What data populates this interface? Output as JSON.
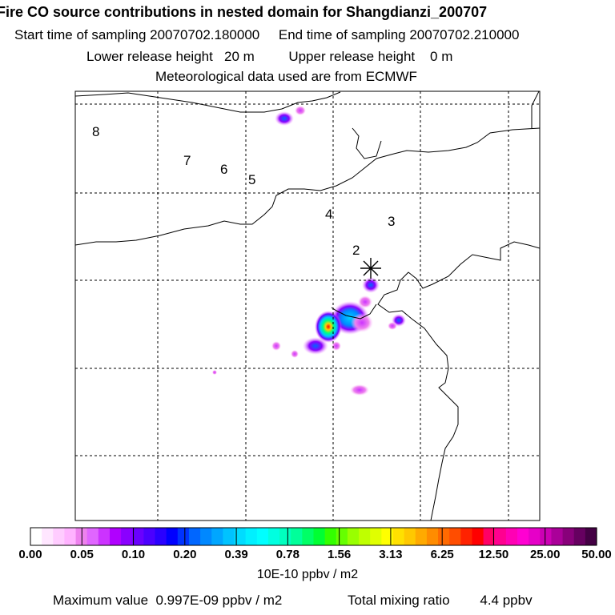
{
  "header": {
    "title": "Fire CO source contributions in nested domain for Shangdianzi_200707",
    "start_label": "Start time of sampling",
    "start_value": "20070702.180000",
    "end_label": "End time of sampling",
    "end_value": "20070702.210000",
    "lower_label": "Lower release height",
    "lower_value": "20 m",
    "upper_label": "Upper release height",
    "upper_value": "0 m",
    "met_line": "Meteorological data used are from ECMWF"
  },
  "map": {
    "site_marker": "station-asterisk",
    "trajectory_labels": [
      "8",
      "7",
      "6",
      "5",
      "4",
      "3",
      "2"
    ],
    "colors": {
      "frame": "#000000",
      "grid": "#000000",
      "coast": "#000000"
    }
  },
  "colorbar": {
    "labels": [
      "0.00",
      "0.05",
      "0.10",
      "0.20",
      "0.39",
      "0.78",
      "1.56",
      "3.13",
      "6.25",
      "12.50",
      "25.00",
      "50.00"
    ],
    "colors": [
      "#ffffff",
      "#ffe6ff",
      "#ffccff",
      "#ffb3ff",
      "#ee82ee",
      "#e066ff",
      "#cc33ff",
      "#b000ff",
      "#8a00ff",
      "#6a00ff",
      "#4b00ff",
      "#2a00ff",
      "#0000ff",
      "#0033ff",
      "#0066ff",
      "#0088ff",
      "#00a6ff",
      "#00c3ff",
      "#00dcff",
      "#00f0ff",
      "#00ffff",
      "#00ffe0",
      "#00ffbf",
      "#00ff9a",
      "#00ff66",
      "#00ff33",
      "#33ff00",
      "#66ff00",
      "#99ff00",
      "#bfff00",
      "#e0ff00",
      "#ffff00",
      "#ffe000",
      "#ffc800",
      "#ffaa00",
      "#ff8c00",
      "#ff6a00",
      "#ff4d00",
      "#ff2200",
      "#ff0000",
      "#ff0066",
      "#ff0090",
      "#ff00b4",
      "#ff00d2",
      "#e600c8",
      "#cc00b4",
      "#aa0099",
      "#88007a",
      "#660060",
      "#440044"
    ],
    "units": "10E-10 ppbv / m2"
  },
  "footer": {
    "max_label": "Maximum value",
    "max_value": "0.997E-09 ppbv / m2",
    "total_label": "Total mixing ratio",
    "total_value": "4.4 ppbv"
  }
}
